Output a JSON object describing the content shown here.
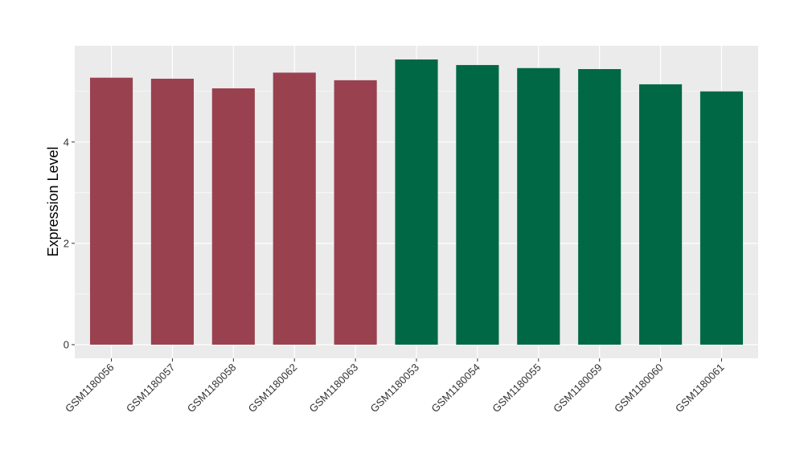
{
  "chart_data": {
    "type": "bar",
    "title": "",
    "xlabel": "",
    "ylabel": "Expression Level",
    "categories": [
      "GSM1180056",
      "GSM1180057",
      "GSM1180058",
      "GSM1180062",
      "GSM1180063",
      "GSM1180053",
      "GSM1180054",
      "GSM1180055",
      "GSM1180059",
      "GSM1180060",
      "GSM1180061"
    ],
    "values": [
      5.27,
      5.25,
      5.06,
      5.37,
      5.22,
      5.63,
      5.52,
      5.46,
      5.44,
      5.14,
      5.0
    ],
    "group_colors": [
      "#9A4150",
      "#9A4150",
      "#9A4150",
      "#9A4150",
      "#9A4150",
      "#006845",
      "#006845",
      "#006845",
      "#006845",
      "#006845",
      "#006845"
    ],
    "ylim": [
      -0.27,
      5.9
    ],
    "yticks": [
      0,
      2,
      4
    ],
    "grid": true,
    "panel_background": "#EBEBEB",
    "gridline_color": "#FFFFFF",
    "legend": "none"
  }
}
